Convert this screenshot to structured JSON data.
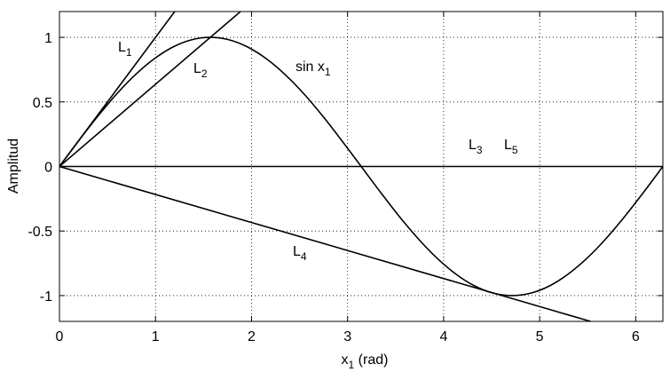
{
  "chart_data": {
    "type": "line",
    "xlabel": {
      "base": "x",
      "sub": "1",
      "tail": " (rad)"
    },
    "ylabel": "Amplitud",
    "xlim": [
      0,
      6.2832
    ],
    "ylim": [
      -1.2,
      1.2
    ],
    "xticks": [
      0,
      1,
      2,
      3,
      4,
      5,
      6
    ],
    "yticks": [
      -1,
      -0.5,
      0,
      0.5,
      1
    ],
    "grid": true,
    "series": [
      {
        "color": "#000000",
        "x": [
          0,
          0.196,
          0.393,
          0.589,
          0.785,
          0.982,
          1.178,
          1.374,
          1.571,
          1.767,
          1.963,
          2.16,
          2.356,
          2.553,
          2.749,
          2.945,
          3.142,
          3.338,
          3.534,
          3.731,
          3.927,
          4.123,
          4.32,
          4.516,
          4.712,
          4.909,
          5.105,
          5.301,
          5.498,
          5.694,
          5.89,
          6.087,
          6.283
        ],
        "values": [
          0,
          0.195,
          0.383,
          0.556,
          0.707,
          0.831,
          0.924,
          0.981,
          1,
          0.981,
          0.924,
          0.831,
          0.707,
          0.556,
          0.383,
          0.195,
          0,
          -0.195,
          -0.383,
          -0.556,
          -0.707,
          -0.831,
          -0.924,
          -0.981,
          -1,
          -0.981,
          -0.924,
          -0.831,
          -0.707,
          -0.556,
          -0.383,
          -0.195,
          0
        ]
      },
      {
        "color": "#000000",
        "x": [
          0,
          1.2
        ],
        "values": [
          0,
          1.2
        ]
      },
      {
        "color": "#000000",
        "x": [
          0,
          1.885
        ],
        "values": [
          0,
          1.2
        ]
      },
      {
        "color": "#000000",
        "x": [
          0,
          6.283
        ],
        "values": [
          0,
          0
        ]
      },
      {
        "color": "#000000",
        "x": [
          0,
          5.53
        ],
        "values": [
          0,
          -1.2
        ]
      }
    ],
    "annotations": [
      {
        "base": "L",
        "sub": "1"
      },
      {
        "base": "L",
        "sub": "2"
      },
      {
        "base": "sin x",
        "sub": "1"
      },
      {
        "base": "L",
        "sub": "3"
      },
      {
        "base": "L",
        "sub": "5"
      },
      {
        "base": "L",
        "sub": "4"
      }
    ]
  }
}
